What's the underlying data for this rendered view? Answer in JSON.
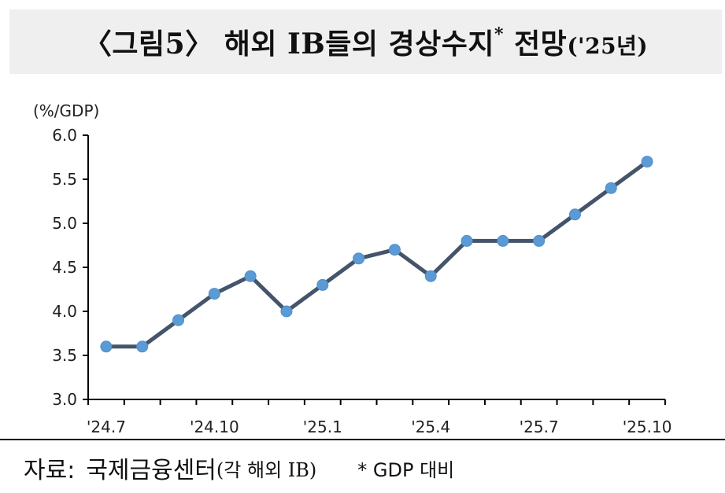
{
  "header": {
    "title_main": "〈그림5〉 해외 IB들의 경상수지",
    "title_mark": "*",
    "title_tail": " 전망",
    "title_suffix": "('25년)"
  },
  "footer": {
    "source_label": "자료:",
    "source_value": "국제금융센터",
    "source_note": "(각 해외 IB)",
    "footnote": "* GDP 대비"
  },
  "colors": {
    "line": "#44546a",
    "marker": "#5b9bd5",
    "axis": "#000000"
  },
  "chart_data": {
    "type": "line",
    "title": "",
    "xlabel": "",
    "ylabel": "(%/GDP)",
    "ylim": [
      3.0,
      6.0
    ],
    "yticks": [
      "3.0",
      "3.5",
      "4.0",
      "4.5",
      "5.0",
      "5.5",
      "6.0"
    ],
    "x": [
      "'24.7",
      "'24.8",
      "'24.9",
      "'24.10",
      "'24.11",
      "'24.12",
      "'25.1",
      "'25.2",
      "'25.3",
      "'25.4",
      "'25.5",
      "'25.6",
      "'25.7",
      "'25.8",
      "'25.9",
      "'25.10"
    ],
    "x_tick_labels": [
      "'24.7",
      "'24.10",
      "'25.1",
      "'25.4",
      "'25.7",
      "'25.10"
    ],
    "series": [
      {
        "values": [
          3.6,
          3.6,
          3.9,
          4.2,
          4.4,
          4.0,
          4.3,
          4.6,
          4.7,
          4.4,
          4.8,
          4.8,
          4.8,
          5.1,
          5.4,
          5.7
        ]
      }
    ],
    "grid": false,
    "legend": "none"
  }
}
